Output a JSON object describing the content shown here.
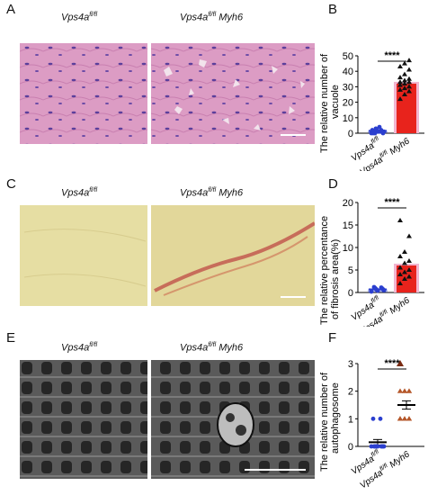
{
  "panels": {
    "A": {
      "letter": "A",
      "label_left": "Vps4a",
      "label_left_sup": "fl/fl",
      "label_right": "Vps4a",
      "label_right_sup": "fl/fl",
      "label_right_suffix": " Myh6"
    },
    "C": {
      "letter": "C",
      "label_left": "Vps4a",
      "label_left_sup": "fl/fl",
      "label_right": "Vps4a",
      "label_right_sup": "fl/fl",
      "label_right_suffix": " Myh6"
    },
    "E": {
      "letter": "E",
      "label_left": "Vps4a",
      "label_left_sup": "fl/fl",
      "label_right": "Vps4a",
      "label_right_sup": "fl/fl",
      "label_right_suffix": " Myh6"
    },
    "B": {
      "letter": "B"
    },
    "D": {
      "letter": "D"
    },
    "F": {
      "letter": "F"
    }
  },
  "colors": {
    "he_bg": "#dc9cc4",
    "he_nuclei": "#5b3f9c",
    "vg_bg": "#e6dea3",
    "vg_fibrosis": "#c0524a",
    "em_bg": "#5a5a5a",
    "em_dark": "#262626",
    "em_light": "#bdbdbd",
    "bar_red": "#e8231c",
    "bar_pink": "#f2b6d0",
    "ctrl_blue": "#2b3fcf",
    "tri_brown": "#b5572a"
  },
  "chart_data": [
    {
      "type": "bar",
      "panel": "B",
      "ylabel_line1": "The relative number of",
      "ylabel_line2": "vacuole",
      "ylim": [
        0,
        50
      ],
      "yticks": [
        0,
        10,
        20,
        30,
        40,
        50
      ],
      "categories": [
        "Vps4a",
        "Vps4a"
      ],
      "category_sups": [
        "fl/fl",
        "fl/fl"
      ],
      "category_suffix": [
        "",
        " Myh6"
      ],
      "significance": "****",
      "series": [
        {
          "values": [
            1.5,
            32
          ]
        }
      ],
      "points": [
        [
          0,
          1,
          1,
          2,
          0,
          3,
          1,
          0,
          2,
          1,
          1,
          0,
          4,
          2,
          1
        ],
        [
          22,
          25,
          27,
          28,
          29,
          30,
          31,
          32,
          33,
          33,
          34,
          35,
          36,
          38,
          41,
          43,
          45,
          47
        ]
      ]
    },
    {
      "type": "bar",
      "panel": "D",
      "ylabel_line1": "The relative percentance",
      "ylabel_line2": "of  fibrosis area(%)",
      "ylim": [
        0,
        20
      ],
      "yticks": [
        0,
        5,
        10,
        15,
        20
      ],
      "categories": [
        "Vps4a",
        "Vps4a"
      ],
      "category_sups": [
        "fl/fl",
        "fl/fl"
      ],
      "category_suffix": [
        "",
        " Myh6"
      ],
      "significance": "****",
      "series": [
        {
          "values": [
            0.7,
            6.0
          ]
        }
      ],
      "points": [
        [
          0.2,
          0.4,
          0.5,
          0.6,
          0.7,
          0.8,
          0.9,
          1.0,
          1.1,
          1.2
        ],
        [
          2.0,
          3.0,
          3.5,
          4.0,
          4.5,
          5.0,
          5.5,
          6.5,
          7.0,
          8.0,
          9.0,
          12.5,
          16.0
        ]
      ]
    },
    {
      "type": "scatter",
      "panel": "F",
      "ylabel_line1": "The relative number of",
      "ylabel_line2": "autophagosome",
      "ylim": [
        0,
        3
      ],
      "yticks": [
        0,
        1,
        2,
        3
      ],
      "categories": [
        "Vps4a",
        "Vps4a"
      ],
      "category_sups": [
        "fl/fl",
        "fl/fl"
      ],
      "category_suffix": [
        "",
        " Myh6"
      ],
      "significance": "****",
      "series": [
        {
          "values": [
            0.15,
            1.5
          ]
        }
      ],
      "sem": [
        0.1,
        0.15
      ],
      "points": [
        [
          0,
          0,
          0,
          0,
          0,
          0,
          0,
          0,
          0,
          0,
          1,
          1
        ],
        [
          1,
          1,
          1,
          1,
          1,
          1,
          1,
          1,
          1,
          1,
          2,
          2,
          2,
          2,
          2,
          2,
          2,
          2,
          3
        ]
      ]
    }
  ]
}
